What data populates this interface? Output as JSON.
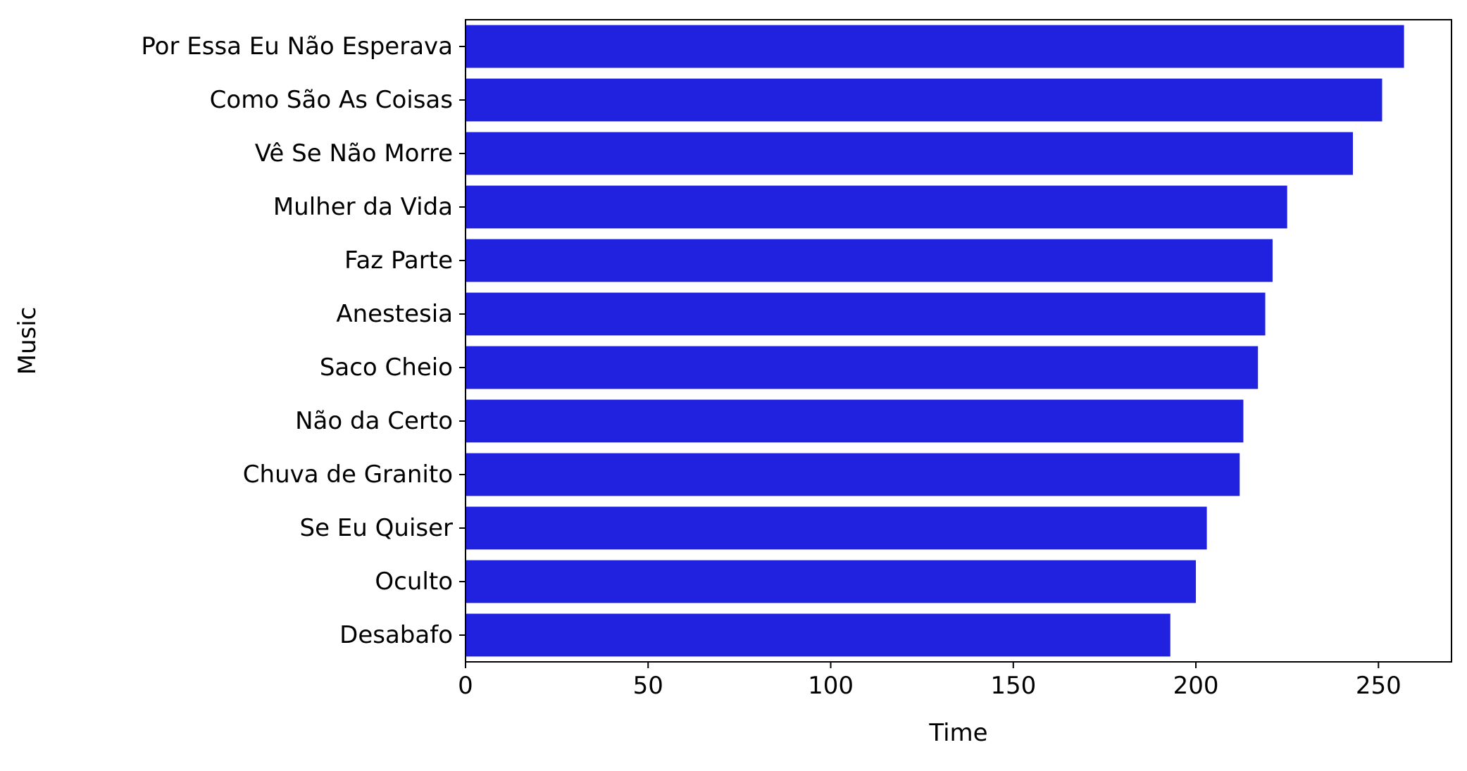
{
  "chart_data": {
    "type": "bar",
    "orientation": "horizontal",
    "categories": [
      "Por Essa Eu Não Esperava",
      "Como São As Coisas",
      "Vê Se Não Morre",
      "Mulher da Vida",
      "Faz Parte",
      "Anestesia",
      "Saco Cheio",
      "Não da Certo",
      "Chuva de Granito",
      "Se Eu Quiser",
      "Oculto",
      "Desabafo"
    ],
    "values": [
      257,
      251,
      243,
      225,
      221,
      219,
      217,
      213,
      212,
      203,
      200,
      193
    ],
    "xlabel": "Time",
    "ylabel": "Music",
    "xlim": [
      0,
      270
    ],
    "xticks": [
      0,
      50,
      100,
      150,
      200,
      250
    ],
    "xtick_labels": [
      "0",
      "50",
      "100",
      "150",
      "200",
      "250"
    ],
    "grid": false,
    "bar_color": "#2121e0"
  }
}
